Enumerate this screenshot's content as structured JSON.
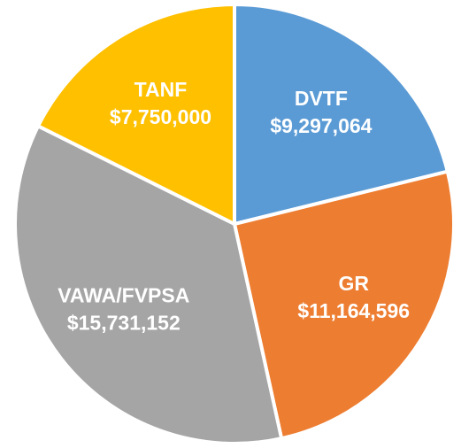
{
  "chart_data": {
    "type": "pie",
    "categories": [
      "DVTF",
      "GR",
      "VAWA/FVPSA",
      "TANF"
    ],
    "values": [
      9297064,
      11164596,
      15731152,
      7750000
    ],
    "value_labels": [
      "$9,297,064",
      "$11,164,596",
      "$15,731,152",
      "$7,750,000"
    ],
    "colors": [
      "#5b9bd5",
      "#ed7d31",
      "#a5a5a5",
      "#ffc000"
    ],
    "start_angle": 0,
    "direction": "clockwise"
  }
}
